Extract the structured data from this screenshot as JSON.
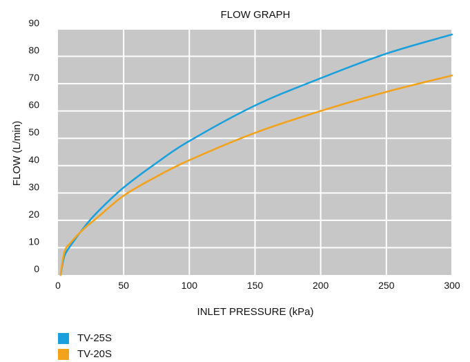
{
  "chart_data": {
    "type": "line",
    "title": "FLOW GRAPH",
    "xlabel": "INLET PRESSURE (kPa)",
    "ylabel": "FLOW (L/min)",
    "xlim": [
      0,
      300
    ],
    "ylim": [
      0,
      90
    ],
    "x_ticks": [
      "0",
      "50",
      "100",
      "150",
      "200",
      "250",
      "300"
    ],
    "y_ticks": [
      "0",
      "10",
      "20",
      "30",
      "40",
      "50",
      "60",
      "70",
      "80",
      "90"
    ],
    "grid": true,
    "plot_background": "#c7c7c7",
    "grid_color": "#ffffff",
    "legend_position": "bottom-left",
    "series": [
      {
        "name": "TV-25S",
        "color": "#1aa0dc",
        "x": [
          2,
          5,
          10,
          20,
          30,
          50,
          75,
          100,
          150,
          200,
          250,
          300
        ],
        "y": [
          0,
          7,
          11,
          17.5,
          23,
          32,
          41,
          49,
          62,
          72,
          81,
          88
        ]
      },
      {
        "name": "TV-20S",
        "color": "#f3a21c",
        "x": [
          2,
          5,
          10,
          20,
          30,
          50,
          75,
          100,
          150,
          200,
          250,
          300
        ],
        "y": [
          0,
          8.5,
          12,
          17,
          21,
          29,
          36,
          42,
          52,
          60,
          67,
          73
        ]
      }
    ]
  }
}
